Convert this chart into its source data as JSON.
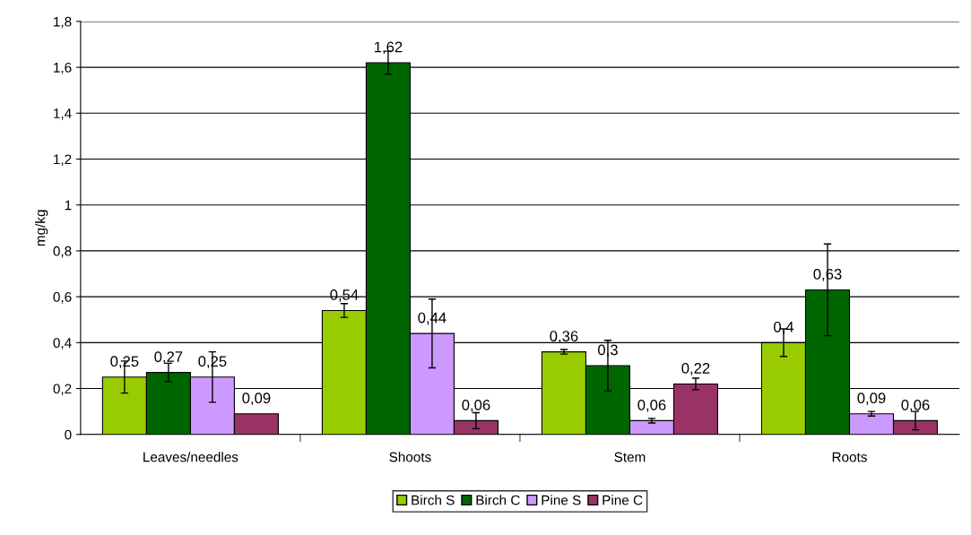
{
  "chart_data": {
    "type": "bar",
    "ylabel": "mg/kg",
    "categories": [
      "Leaves/needles",
      "Shoots",
      "Stem",
      "Roots"
    ],
    "series": [
      {
        "name": "Birch S",
        "color": "#99cc00",
        "values": [
          0.25,
          0.54,
          0.36,
          0.4
        ],
        "errors": [
          0.07,
          0.03,
          0.01,
          0.06
        ],
        "value_labels": [
          "0,25",
          "0,54",
          "0,36",
          "0,4"
        ]
      },
      {
        "name": "Birch C",
        "color": "#006600",
        "values": [
          0.27,
          1.62,
          0.3,
          0.63
        ],
        "errors": [
          0.04,
          0.05,
          0.11,
          0.2
        ],
        "value_labels": [
          "0,27",
          "1,62",
          "0,3",
          "0,63"
        ]
      },
      {
        "name": "Pine S",
        "color": "#cc99ff",
        "values": [
          0.25,
          0.44,
          0.06,
          0.09
        ],
        "errors": [
          0.11,
          0.15,
          0.01,
          0.01
        ],
        "value_labels": [
          "0,25",
          "0,44",
          "0,06",
          "0,09"
        ]
      },
      {
        "name": "Pine C",
        "color": "#993366",
        "values": [
          0.09,
          0.06,
          0.22,
          0.06
        ],
        "errors": [
          null,
          0.035,
          0.025,
          0.04
        ],
        "value_labels": [
          "0,09",
          "0,06",
          "0,22",
          "0,06"
        ]
      }
    ],
    "ylim": [
      0,
      1.8
    ],
    "yticks": [
      0,
      {
        "value": 0.2,
        "label": "0,2"
      },
      {
        "value": 0.4,
        "label": "0,4"
      },
      {
        "value": 0.6,
        "label": "0,6"
      },
      {
        "value": 0.8,
        "label": "0,8"
      },
      1,
      {
        "value": 1.2,
        "label": "1,2"
      },
      {
        "value": 1.4,
        "label": "1,4"
      },
      {
        "value": 1.6,
        "label": "1,6"
      },
      {
        "value": 1.8,
        "label": "1,8"
      }
    ],
    "grid": "y",
    "legend": "bottom"
  }
}
